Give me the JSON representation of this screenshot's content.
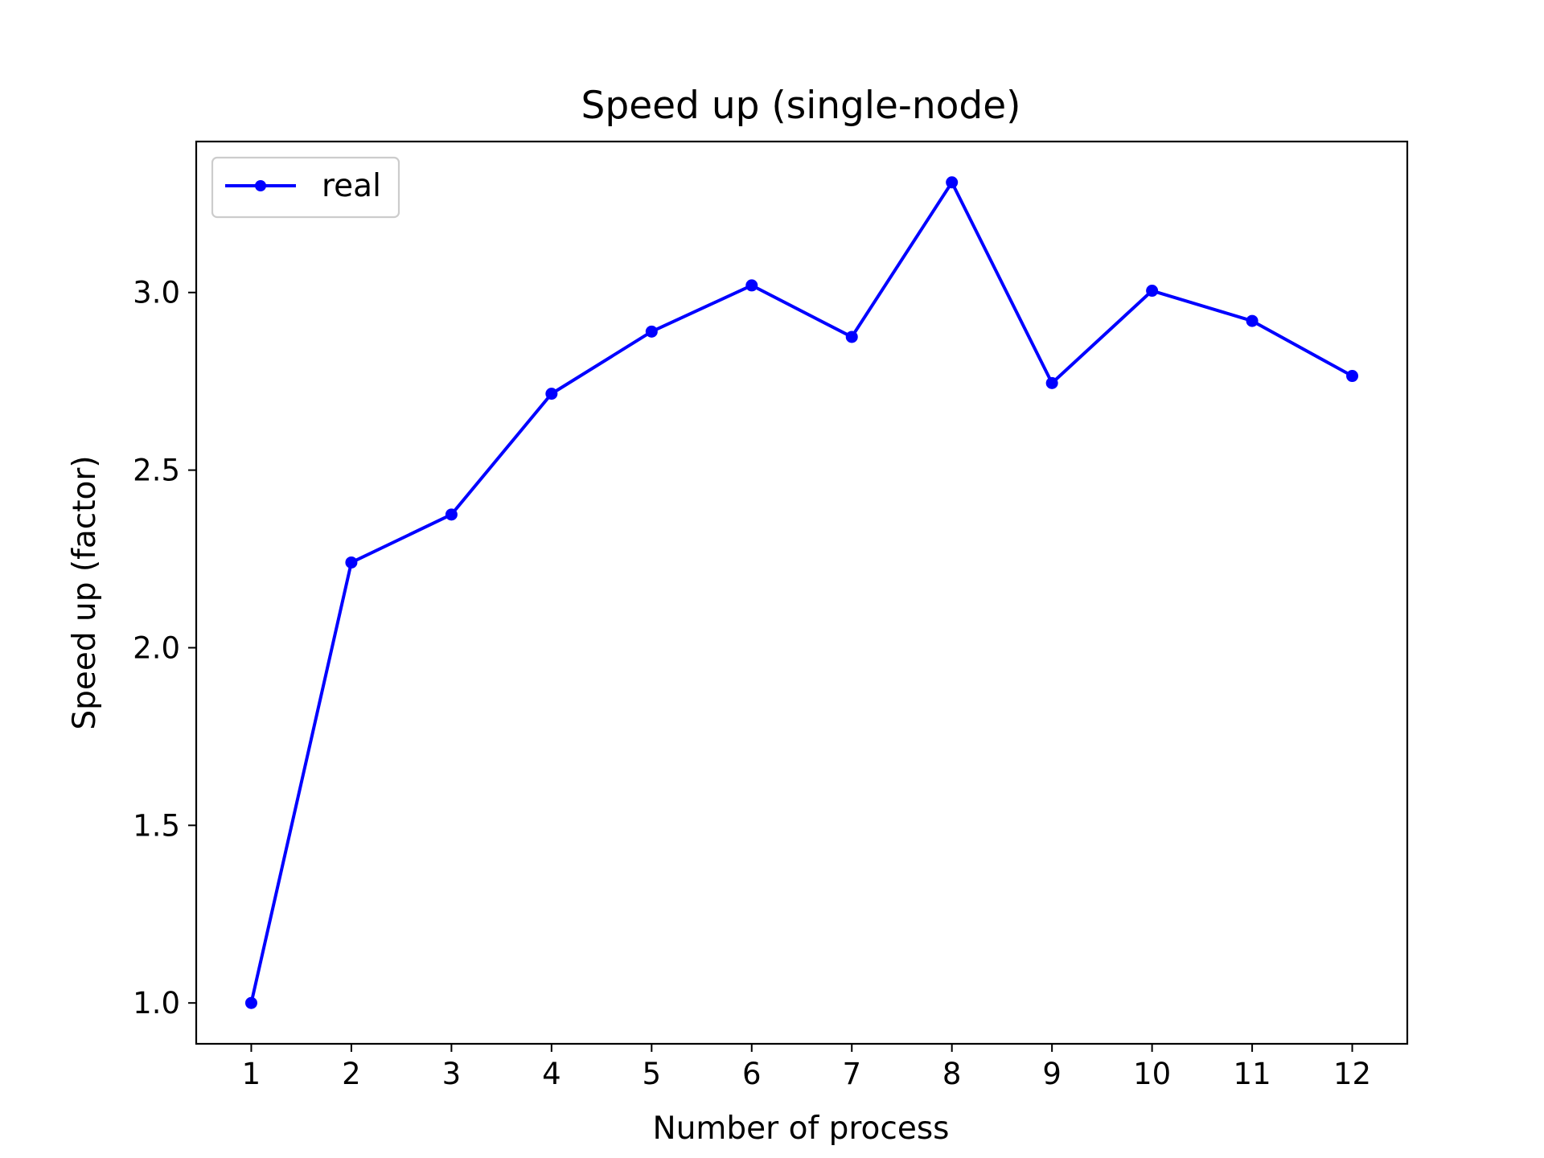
{
  "chart_data": {
    "type": "line",
    "title": "Speed up (single-node)",
    "xlabel": "Number of process",
    "ylabel": "Speed up (factor)",
    "x": [
      1,
      2,
      3,
      4,
      5,
      6,
      7,
      8,
      9,
      10,
      11,
      12
    ],
    "xticks": [
      "1",
      "2",
      "3",
      "4",
      "5",
      "6",
      "7",
      "8",
      "9",
      "10",
      "11",
      "12"
    ],
    "yticks": [
      "1.0",
      "1.5",
      "2.0",
      "2.5",
      "3.0"
    ],
    "ytick_values": [
      1.0,
      1.5,
      2.0,
      2.5,
      3.0
    ],
    "xlim": [
      0.45,
      12.55
    ],
    "ylim": [
      0.885,
      3.425
    ],
    "grid": false,
    "legend_position": "upper-left",
    "series": [
      {
        "name": "real",
        "color": "#0000ff",
        "marker": "circle",
        "values": [
          1.0,
          2.24,
          2.375,
          2.715,
          2.89,
          3.02,
          2.875,
          3.31,
          2.745,
          3.005,
          2.92,
          2.765
        ]
      }
    ]
  }
}
